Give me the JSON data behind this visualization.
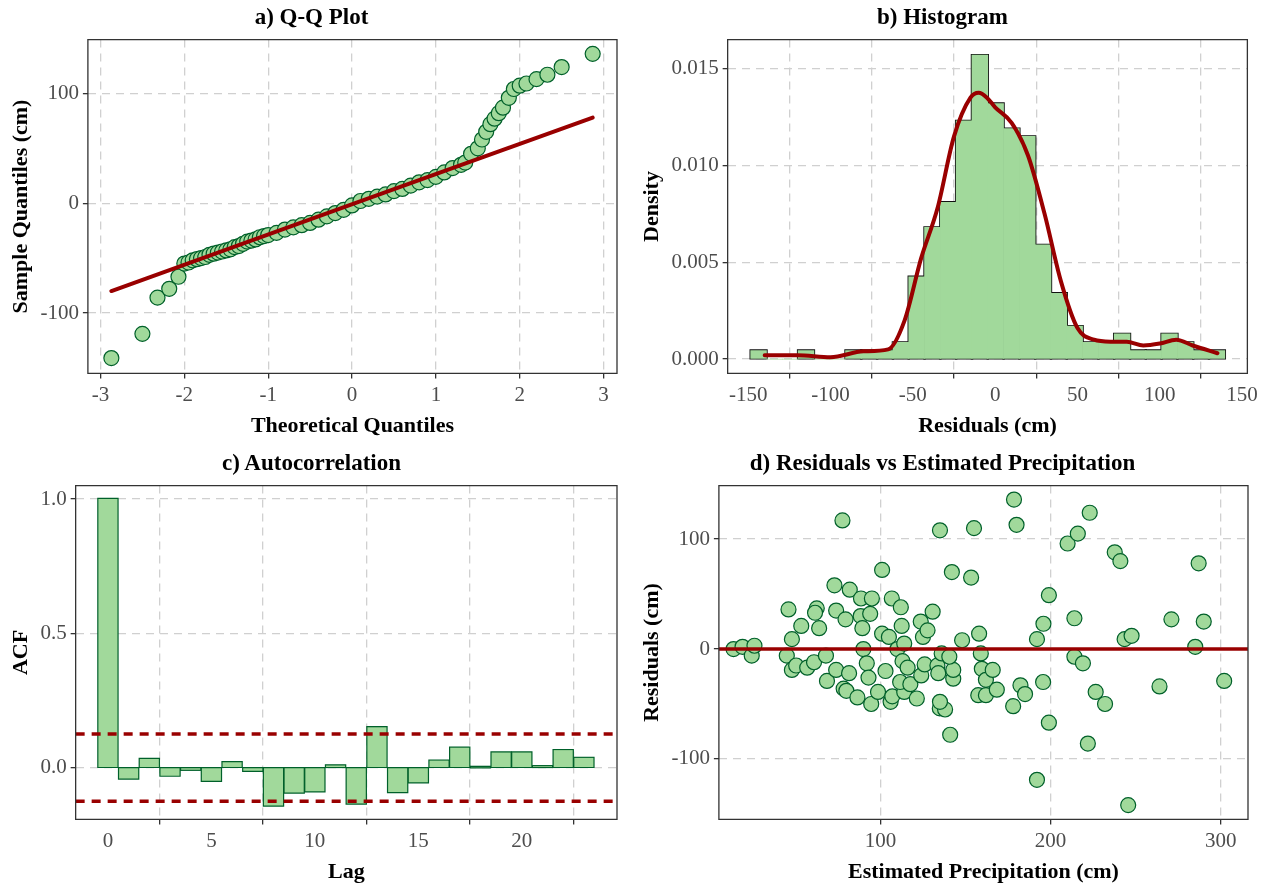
{
  "chart_data": [
    {
      "type": "scatter",
      "title": "a) Q-Q Plot",
      "xlabel": "Theoretical Quantiles",
      "ylabel": "Sample Quantiles (cm)",
      "xlim": [
        -3.15,
        3.16
      ],
      "ylim": [
        -155,
        149
      ],
      "xticks": [
        -3,
        -2,
        -1,
        0,
        1,
        2,
        3
      ],
      "yticks": [
        -100,
        0,
        100
      ],
      "grid": true,
      "series": [
        {
          "type": "scatter",
          "marker": "circle",
          "color": "#a1d99b",
          "x": [
            -2.87,
            -2.5,
            -2.32,
            -2.18,
            -2.07,
            -2.0,
            -1.95,
            -1.9,
            -1.85,
            -1.8,
            -1.75,
            -1.7,
            -1.65,
            -1.6,
            -1.55,
            -1.5,
            -1.45,
            -1.4,
            -1.35,
            -1.3,
            -1.25,
            -1.2,
            -1.15,
            -1.1,
            -1.05,
            -1.0,
            -0.9,
            -0.8,
            -0.7,
            -0.6,
            -0.5,
            -0.4,
            -0.3,
            -0.2,
            -0.1,
            0.0,
            0.1,
            0.2,
            0.3,
            0.4,
            0.5,
            0.6,
            0.7,
            0.8,
            0.9,
            1.0,
            1.1,
            1.2,
            1.3,
            1.35,
            1.42,
            1.5,
            1.55,
            1.6,
            1.65,
            1.7,
            1.75,
            1.8,
            1.87,
            1.93,
            2.0,
            2.08,
            2.2,
            2.33,
            2.5,
            2.87
          ],
          "values": [
            -141,
            -119,
            -86,
            -78,
            -67,
            -55,
            -54,
            -52,
            -51,
            -50,
            -49,
            -47,
            -46,
            -45,
            -44,
            -43,
            -42,
            -40,
            -39,
            -37,
            -35,
            -34,
            -33,
            -31,
            -30,
            -29,
            -27,
            -24,
            -22,
            -20,
            -18,
            -15,
            -12,
            -9,
            -6,
            -2,
            2,
            4,
            6,
            8,
            11,
            13,
            16,
            19,
            21,
            24,
            28,
            32,
            35,
            37,
            45,
            50,
            58,
            65,
            72,
            77,
            82,
            87,
            96,
            104,
            107,
            109,
            113,
            117,
            124,
            136
          ]
        },
        {
          "type": "line",
          "color": "#990000",
          "x": [
            -2.87,
            2.87
          ],
          "values": [
            -80,
            78
          ]
        }
      ]
    },
    {
      "type": "histogram",
      "title": "b) Histogram",
      "xlabel": "Residuals (cm)",
      "ylabel": "Density",
      "xlim": [
        -162.5,
        153.2
      ],
      "ylim": [
        -0.00074,
        0.0165
      ],
      "xticks": [
        -150,
        -100,
        -50,
        0,
        50,
        100,
        150
      ],
      "yticks": [
        {
          "value": 0,
          "label": "0.000"
        },
        {
          "value": 0.005,
          "label": "0.005"
        },
        {
          "value": 0.01,
          "label": "0.010"
        },
        {
          "value": 0.015,
          "label": "0.015"
        }
      ],
      "grid": true,
      "series": [
        {
          "type": "histogram",
          "color": "#a1d99b",
          "bins": [
            -148.5,
            -138.9,
            -129.3,
            -119.7,
            -110.1,
            -100.5,
            -90.9,
            -81.3,
            -71.7,
            -62.1,
            -52.5,
            -42.9,
            -33.3,
            -23.7,
            -14.1,
            -4.5,
            5.1,
            14.7,
            24.3,
            33.9,
            43.5,
            53.1,
            62.7,
            72.3,
            81.9,
            91.5,
            101.1,
            110.7,
            120.3,
            129.9,
            139.5
          ],
          "values": [
            0.00044,
            0,
            0,
            0.00044,
            0,
            0,
            0.00044,
            0.00044,
            0.00044,
            0.00086,
            0.00425,
            0.0068,
            0.0081,
            0.0123,
            0.0157,
            0.0132,
            0.0119,
            0.0115,
            0.0059,
            0.0034,
            0.0017,
            0.00086,
            0.00086,
            0.0013,
            0.00044,
            0.00044,
            0.0013,
            0.00086,
            0.00044,
            0.00044
          ]
        },
        {
          "type": "line",
          "color": "#990000",
          "x": [
            -140,
            -120,
            -100,
            -80,
            -65,
            -55,
            -45,
            -35,
            -25,
            -15,
            -10,
            -5,
            0,
            10,
            20,
            30,
            40,
            50,
            60,
            70,
            80,
            90,
            100,
            110,
            120,
            135
          ],
          "values": [
            0.0002,
            0.0002,
            0.0001,
            0.0004,
            0.0005,
            0.002,
            0.0052,
            0.0078,
            0.0115,
            0.0135,
            0.01375,
            0.0135,
            0.013,
            0.0122,
            0.0105,
            0.0075,
            0.004,
            0.0016,
            0.001,
            0.0009,
            0.0009,
            0.0007,
            0.0008,
            0.001,
            0.0007,
            0.0003
          ]
        }
      ]
    },
    {
      "type": "bar",
      "title": "c) Autocorrelation",
      "xlabel": "Lag",
      "ylabel": "ACF",
      "xlim": [
        -1.56,
        24.6
      ],
      "ylim": [
        -0.193,
        1.05
      ],
      "xticks": [
        0,
        5,
        10,
        15,
        20
      ],
      "yticks": [
        {
          "value": 0,
          "label": "0.0"
        },
        {
          "value": 0.5,
          "label": "0.5"
        },
        {
          "value": 1,
          "label": "1.0"
        }
      ],
      "grid": true,
      "color": "#a1d99b",
      "x": [
        0,
        1,
        2,
        3,
        4,
        5,
        6,
        7,
        8,
        9,
        10,
        11,
        12,
        13,
        14,
        15,
        16,
        17,
        18,
        19,
        20,
        21,
        22,
        23
      ],
      "values": [
        1.0,
        -0.041,
        0.032,
        -0.03,
        -0.008,
        -0.049,
        0.02,
        -0.012,
        -0.141,
        -0.093,
        -0.088,
        0.008,
        -0.134,
        0.15,
        -0.091,
        -0.055,
        0.026,
        0.074,
        0.001,
        0.056,
        0.056,
        0.005,
        0.065,
        0.036
      ],
      "ref_lines": [
        {
          "axis": "y",
          "value": 0.125,
          "color": "#990000",
          "line_style": "dashed"
        },
        {
          "axis": "y",
          "value": -0.125,
          "color": "#990000",
          "line_style": "dashed"
        }
      ]
    },
    {
      "type": "scatter",
      "title": "d) Residuals vs Estimated Precipitation",
      "xlabel": "Estimated Precipitation (cm)",
      "ylabel": "Residuals (cm)",
      "xlim": [
        5.1,
        316
      ],
      "ylim": [
        -155,
        148.7
      ],
      "xticks": [
        100,
        200,
        300
      ],
      "yticks": [
        -100,
        0,
        100
      ],
      "grid": true,
      "marker": "circle",
      "color": "#a1d99b",
      "x": [
        13.7,
        19,
        24.4,
        26,
        46,
        45,
        48,
        48,
        50.5,
        53.5,
        57,
        61,
        62.6,
        61.6,
        64,
        68,
        68.6,
        73,
        74,
        74,
        77.7,
        78.4,
        79.5,
        80,
        82,
        81.6,
        86.5,
        88.6,
        88.4,
        89.4,
        90,
        92,
        93,
        94.6,
        95,
        94,
        101,
        101,
        98.6,
        103,
        106,
        106.7,
        107,
        105,
        110,
        112,
        112.5,
        113,
        114,
        114,
        111.6,
        116,
        117.6,
        121.4,
        123.7,
        124,
        125,
        126,
        127.7,
        130.7,
        133.5,
        134,
        135,
        136,
        134.9,
        138,
        135,
        141,
        142,
        142.8,
        142.8,
        140.5,
        148,
        153.3,
        155,
        158,
        159,
        157.5,
        159.6,
        162,
        162,
        166,
        168.4,
        178,
        178.5,
        180,
        182.3,
        185,
        192,
        192,
        195.6,
        195.8,
        199,
        199,
        210,
        214,
        214,
        216,
        219,
        221.9,
        223,
        226.5,
        232,
        237.7,
        241,
        243.5,
        245.6,
        247.6,
        264,
        271,
        285,
        287,
        290,
        302
      ],
      "values": [
        0,
        2,
        -6,
        3,
        36,
        -6,
        9,
        -19,
        -15,
        21,
        -17,
        -12,
        37,
        33,
        19,
        -6,
        -29,
        58,
        35,
        -19,
        117,
        -36,
        27,
        -38,
        54,
        -22,
        -44,
        46,
        30,
        19,
        0,
        -13,
        -26,
        -50,
        46,
        32,
        72,
        14,
        -39,
        -20,
        -48,
        46,
        -43,
        11,
        0,
        38,
        21,
        -11,
        -39,
        5,
        -30,
        -17,
        -32,
        -45,
        25,
        -24,
        11,
        -14,
        17,
        34,
        -15,
        -22,
        108,
        -4,
        -54,
        -55,
        -48,
        -78,
        70,
        -27,
        -19,
        -7,
        8,
        65,
        110,
        14,
        -4,
        -42,
        -18,
        -28,
        -42,
        -19,
        -37,
        -52,
        136,
        113,
        -33,
        -41,
        9,
        -119,
        -30,
        23,
        -67,
        49,
        96,
        28,
        -7,
        105,
        -13,
        -86,
        124,
        -39,
        -50,
        88,
        80,
        9,
        -142,
        12,
        -34,
        27,
        2,
        78,
        25,
        -29
      ],
      "ref_lines": [
        {
          "axis": "y",
          "value": 0,
          "color": "#990000",
          "line_style": "solid"
        }
      ]
    }
  ]
}
